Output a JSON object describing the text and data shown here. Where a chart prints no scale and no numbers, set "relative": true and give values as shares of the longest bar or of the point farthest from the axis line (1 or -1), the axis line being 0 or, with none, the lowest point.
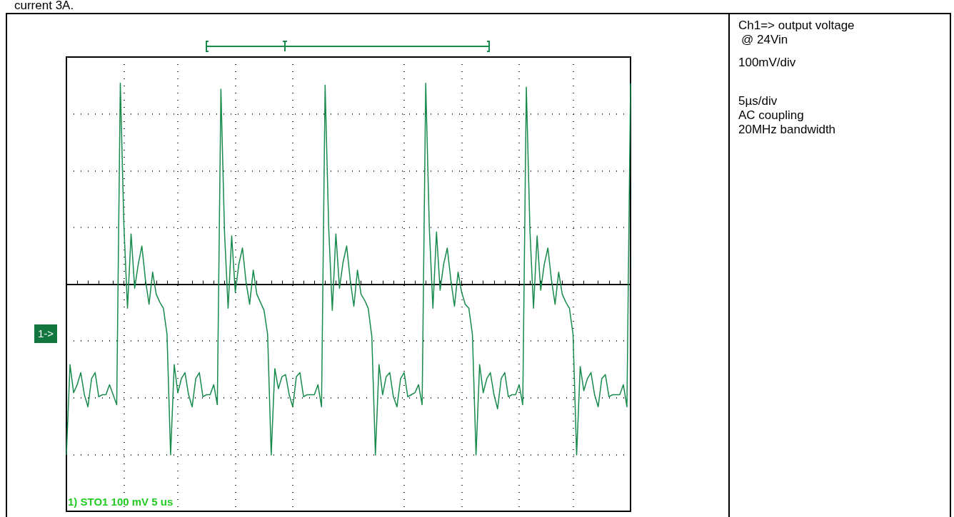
{
  "chart_data": {
    "type": "line",
    "relative": true,
    "color": "#178a4c",
    "grid": true,
    "marker": "none",
    "line_style": "solid",
    "categories": [
      null,
      null,
      null,
      null,
      null,
      null,
      null,
      null,
      null,
      null,
      null,
      null,
      null,
      null,
      null,
      null,
      null,
      null,
      null,
      null,
      null,
      null,
      null,
      null,
      null,
      null,
      null,
      null,
      null,
      null,
      null,
      null,
      null,
      null,
      null,
      null,
      null,
      null,
      null,
      null,
      null,
      null,
      null,
      null,
      null,
      null,
      null,
      null,
      null,
      null,
      null,
      null,
      null,
      null,
      null,
      null,
      null,
      null,
      null,
      null,
      null,
      null,
      null,
      null,
      null,
      null,
      null,
      null,
      null,
      null,
      null,
      null,
      null,
      null,
      null,
      null,
      null,
      null,
      null,
      null,
      null,
      null,
      null,
      null,
      null,
      null,
      null,
      null,
      null,
      null,
      null,
      null,
      null,
      null,
      null,
      null,
      null,
      null,
      null,
      null,
      null,
      null,
      null,
      null,
      null,
      null,
      null,
      null,
      null,
      null,
      null,
      null,
      null,
      null,
      null,
      null,
      null,
      null,
      null,
      null,
      null,
      null,
      null,
      null,
      null,
      null,
      null,
      null,
      null,
      null,
      null,
      null,
      null,
      null,
      null,
      null,
      null,
      null,
      null,
      null,
      null,
      null,
      null,
      null,
      null,
      null,
      null,
      null,
      null,
      null,
      null,
      null,
      null,
      null,
      null,
      null,
      null,
      null
    ],
    "values": [
      -0.85,
      -0.4,
      -0.54,
      -0.5,
      -0.44,
      -0.55,
      -0.61,
      -0.47,
      -0.44,
      -0.56,
      -0.55,
      -0.55,
      -0.5,
      -0.55,
      -0.6,
      1,
      0.29,
      -0.12,
      0.25,
      -0.02,
      0.1,
      0.19,
      0.02,
      -0.1,
      0.06,
      -0.05,
      -0.09,
      -0.12,
      -0.25,
      -0.85,
      -0.4,
      -0.54,
      -0.47,
      -0.44,
      -0.55,
      -0.61,
      -0.47,
      -0.44,
      -0.56,
      -0.55,
      -0.55,
      -0.5,
      -0.6,
      0.97,
      0.26,
      -0.12,
      0.24,
      -0.04,
      0.1,
      0.18,
      0.01,
      -0.1,
      0.07,
      -0.05,
      -0.09,
      -0.13,
      -0.25,
      -0.85,
      -0.42,
      -0.52,
      -0.46,
      -0.45,
      -0.55,
      -0.61,
      -0.46,
      -0.44,
      -0.56,
      -0.55,
      -0.55,
      -0.55,
      -0.5,
      -0.61,
      0.99,
      0.28,
      -0.13,
      0.25,
      -0.02,
      0.11,
      0.19,
      0.02,
      -0.11,
      0.07,
      -0.05,
      -0.08,
      -0.12,
      -0.26,
      -0.85,
      -0.4,
      -0.55,
      -0.46,
      -0.44,
      -0.56,
      -0.61,
      -0.47,
      -0.44,
      -0.56,
      -0.55,
      -0.54,
      -0.5,
      -0.6,
      1,
      0.28,
      -0.12,
      0.26,
      -0.03,
      0.1,
      0.18,
      0.02,
      -0.11,
      0.06,
      -0.04,
      -0.1,
      -0.12,
      -0.25,
      -0.85,
      -0.4,
      -0.54,
      -0.47,
      -0.44,
      -0.55,
      -0.62,
      -0.47,
      -0.44,
      -0.56,
      -0.55,
      -0.55,
      -0.5,
      -0.6,
      0.98,
      0.27,
      -0.12,
      0.24,
      -0.03,
      0.1,
      0.18,
      0.02,
      -0.1,
      0.06,
      -0.05,
      -0.09,
      -0.12,
      -0.25,
      -0.85,
      -0.41,
      -0.53,
      -0.47,
      -0.44,
      -0.55,
      -0.61,
      -0.47,
      -0.45,
      -0.56,
      -0.55,
      -0.55,
      -0.55,
      -0.5,
      -0.61,
      1
    ],
    "annotations": [
      "current 3A.",
      "Ch1=> output voltage",
      "@ 24Vin",
      "100mV/div",
      "5µs/div",
      "AC coupling",
      "20MHz bandwidth",
      "1->",
      "1) STO1 100 mV 5 us"
    ]
  }
}
